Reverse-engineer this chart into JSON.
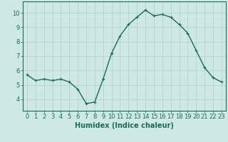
{
  "x": [
    0,
    1,
    2,
    3,
    4,
    5,
    6,
    7,
    8,
    9,
    10,
    11,
    12,
    13,
    14,
    15,
    16,
    17,
    18,
    19,
    20,
    21,
    22,
    23
  ],
  "y": [
    5.7,
    5.3,
    5.4,
    5.3,
    5.4,
    5.2,
    4.7,
    3.7,
    3.8,
    5.4,
    7.2,
    8.4,
    9.2,
    9.7,
    10.2,
    9.8,
    9.9,
    9.7,
    9.2,
    8.6,
    7.4,
    6.2,
    5.5,
    5.2
  ],
  "line_color": "#1a6b5a",
  "marker": "+",
  "marker_size": 3,
  "line_width": 1.0,
  "bg_color": "#cde8e5",
  "grid_color": "#b0cfcc",
  "xlabel": "Humidex (Indice chaleur)",
  "xlabel_fontsize": 7,
  "tick_fontsize": 6,
  "xlim": [
    -0.5,
    23.5
  ],
  "ylim": [
    3.2,
    10.8
  ],
  "yticks": [
    4,
    5,
    6,
    7,
    8,
    9,
    10
  ],
  "xticks": [
    0,
    1,
    2,
    3,
    4,
    5,
    6,
    7,
    8,
    9,
    10,
    11,
    12,
    13,
    14,
    15,
    16,
    17,
    18,
    19,
    20,
    21,
    22,
    23
  ],
  "spine_color": "#1a6b5a",
  "text_color": "#1a6b5a"
}
